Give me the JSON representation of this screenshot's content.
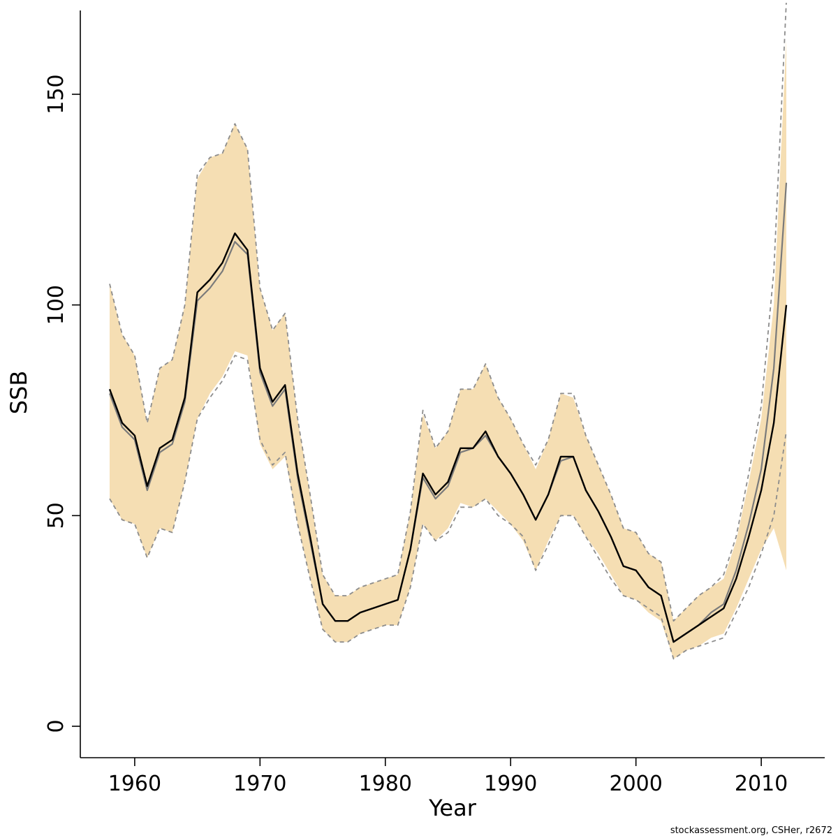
{
  "chart_data": {
    "type": "line",
    "title": "",
    "xlabel": "Year",
    "ylabel": "SSB",
    "source_note": "stockassessment.org, CSHer, r2672",
    "xlim": [
      1958,
      2012
    ],
    "ylim": [
      0,
      172
    ],
    "x_ticks": [
      1960,
      1970,
      1980,
      1990,
      2000,
      2010
    ],
    "y_ticks": [
      0,
      50,
      100,
      150
    ],
    "legend_position": "none",
    "grid": false,
    "band_color": "#F5DEB3",
    "dashed_color": "#8C8C8C",
    "gray_line_color": "#7A7A7A",
    "black_line_color": "#000000",
    "years": [
      1958,
      1959,
      1960,
      1961,
      1962,
      1963,
      1964,
      1965,
      1966,
      1967,
      1968,
      1969,
      1970,
      1971,
      1972,
      1973,
      1974,
      1975,
      1976,
      1977,
      1978,
      1979,
      1980,
      1981,
      1982,
      1983,
      1984,
      1985,
      1986,
      1987,
      1988,
      1989,
      1990,
      1991,
      1992,
      1993,
      1994,
      1995,
      1996,
      1997,
      1998,
      1999,
      2000,
      2001,
      2002,
      2003,
      2004,
      2005,
      2006,
      2007,
      2008,
      2009,
      2010,
      2011,
      2012
    ],
    "series": [
      {
        "name": "ssb-estimate-current",
        "style": "solid-black",
        "values": [
          80,
          72,
          69,
          57,
          66,
          68,
          78,
          103,
          106,
          110,
          117,
          113,
          85,
          77,
          81,
          60,
          45,
          29,
          25,
          25,
          27,
          28,
          29,
          30,
          42,
          60,
          55,
          58,
          66,
          66,
          70,
          64,
          60,
          55,
          49,
          55,
          64,
          64,
          56,
          51,
          45,
          38,
          37,
          33,
          31,
          20,
          22,
          24,
          26,
          28,
          35,
          45,
          56,
          72,
          100
        ]
      },
      {
        "name": "ssb-estimate-previous",
        "style": "solid-gray",
        "values": [
          79,
          71,
          68,
          56,
          65,
          67,
          77,
          101,
          104,
          108,
          115,
          112,
          84,
          76,
          80,
          59,
          44,
          29,
          25,
          25,
          27,
          28,
          29,
          30,
          42,
          59,
          54,
          57,
          65,
          66,
          69,
          64,
          60,
          55,
          49,
          55,
          63,
          64,
          56,
          51,
          45,
          38,
          37,
          33,
          31,
          20,
          22,
          24,
          27,
          29,
          37,
          48,
          61,
          85,
          129
        ]
      }
    ],
    "band": {
      "name": "confidence-band",
      "high": [
        105,
        93,
        88,
        72,
        85,
        87,
        100,
        130,
        135,
        136,
        143,
        137,
        104,
        94,
        98,
        73,
        55,
        36,
        31,
        31,
        33,
        34,
        35,
        36,
        51,
        74,
        66,
        70,
        80,
        80,
        86,
        78,
        73,
        67,
        61,
        68,
        79,
        78,
        69,
        62,
        55,
        47,
        46,
        41,
        39,
        25,
        28,
        31,
        33,
        35,
        44,
        58,
        73,
        100,
        163
      ],
      "low": [
        54,
        49,
        48,
        40,
        47,
        46,
        58,
        73,
        79,
        83,
        89,
        88,
        67,
        61,
        64,
        48,
        35,
        23,
        20,
        20,
        22,
        23,
        24,
        24,
        33,
        48,
        44,
        47,
        53,
        52,
        54,
        51,
        48,
        44,
        37,
        44,
        50,
        50,
        45,
        41,
        36,
        31,
        30,
        27,
        25,
        16,
        18,
        19,
        21,
        22,
        28,
        35,
        42,
        47,
        37
      ]
    },
    "dashed": {
      "name": "confidence-dashed-bounds",
      "high": [
        105,
        93,
        88,
        72,
        85,
        87,
        100,
        131,
        135,
        136,
        143,
        137,
        104,
        94,
        98,
        73,
        55,
        36,
        31,
        31,
        33,
        34,
        35,
        36,
        51,
        75,
        66,
        70,
        80,
        80,
        86,
        78,
        73,
        67,
        62,
        68,
        79,
        79,
        69,
        62,
        55,
        47,
        46,
        41,
        39,
        25,
        28,
        31,
        33,
        36,
        45,
        60,
        76,
        108,
        172
      ],
      "low": [
        54,
        49,
        48,
        40,
        47,
        46,
        58,
        73,
        78,
        82,
        88,
        87,
        68,
        62,
        65,
        48,
        35,
        23,
        20,
        20,
        22,
        23,
        24,
        24,
        33,
        48,
        44,
        46,
        52,
        52,
        54,
        50,
        48,
        45,
        37,
        43,
        50,
        50,
        45,
        40,
        35,
        31,
        30,
        28,
        26,
        16,
        18,
        19,
        20,
        21,
        27,
        33,
        41,
        50,
        70
      ]
    }
  }
}
